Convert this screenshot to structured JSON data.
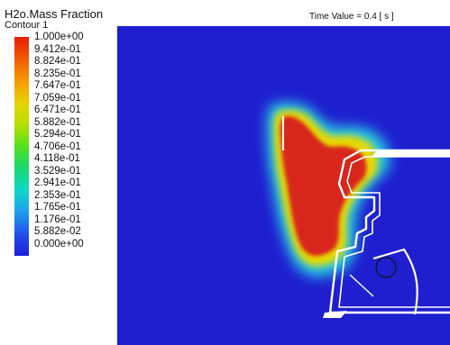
{
  "header": {
    "variable_title": "H2o.Mass Fraction",
    "contour_label": "Contour 1",
    "time_value": "Time Value = 0.4 [ s ]"
  },
  "legend": {
    "labels": [
      "1.000e+00",
      "9.412e-01",
      "8.824e-01",
      "8.235e-01",
      "7.647e-01",
      "7.059e-01",
      "6.471e-01",
      "5.882e-01",
      "5.294e-01",
      "4.706e-01",
      "4.118e-01",
      "3.529e-01",
      "2.941e-01",
      "2.353e-01",
      "1.765e-01",
      "1.176e-01",
      "5.882e-02",
      "0.000e+00"
    ],
    "colors": [
      "#e81c00",
      "#f05a00",
      "#f59a00",
      "#e8d200",
      "#b5e000",
      "#55e020",
      "#18d870",
      "#10d8c8",
      "#1e9ef0",
      "#2050e8",
      "#1e1edc"
    ]
  },
  "plot": {
    "background_color": "#1f1fd0",
    "plume_colors": [
      "#2a6af0",
      "#27d0e0",
      "#4ee050",
      "#e8d800",
      "#d8261a"
    ]
  }
}
